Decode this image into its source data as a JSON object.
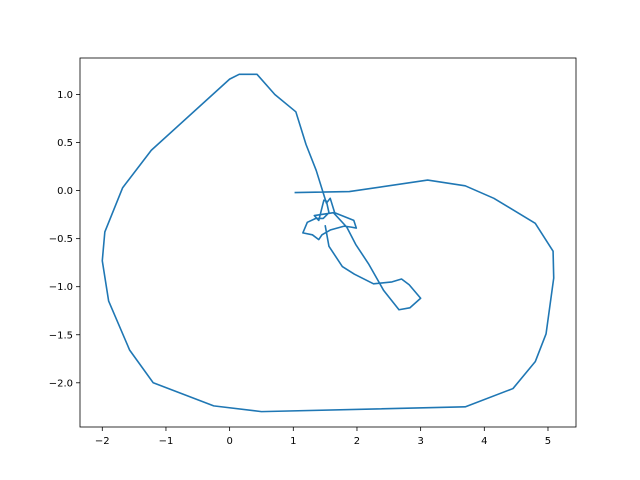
{
  "chart_data": {
    "type": "line",
    "title": "",
    "xlabel": "",
    "ylabel": "",
    "xlim": [
      -2.35,
      5.44
    ],
    "ylim": [
      -2.46,
      1.38
    ],
    "grid": false,
    "legend": "none",
    "xticks": [
      -2,
      -1,
      0,
      1,
      2,
      3,
      4,
      5
    ],
    "yticks": [
      -2.0,
      -1.5,
      -1.0,
      -0.5,
      0.0,
      0.5,
      1.0
    ],
    "xtick_labels": [
      "−2",
      "−1",
      "0",
      "1",
      "2",
      "3",
      "4",
      "5"
    ],
    "ytick_labels": [
      "−2.0",
      "−1.5",
      "−1.0",
      "−0.5",
      "0.0",
      "0.5",
      "1.0"
    ],
    "series": [
      {
        "color": "#1f77b4",
        "x": [
          1.02,
          1.88,
          3.11,
          3.7,
          4.15,
          4.8,
          5.08,
          5.09,
          4.97,
          4.8,
          4.45,
          3.7,
          0.5,
          -0.25,
          -1.2,
          -1.57,
          -1.9,
          -2.0,
          -1.96,
          -1.68,
          -1.23,
          0.0,
          0.15,
          0.43,
          0.71,
          1.04,
          1.2,
          1.36,
          1.52,
          1.58,
          1.65,
          1.95,
          1.99,
          1.91,
          1.8,
          1.58,
          1.45,
          1.4,
          1.3,
          1.15,
          1.22,
          1.35,
          1.47,
          1.56,
          1.52,
          1.48,
          1.4,
          1.33,
          1.63,
          1.84,
          1.98,
          2.18,
          2.42,
          2.66,
          2.83,
          3.0,
          2.82,
          2.7,
          2.55,
          2.26,
          1.96,
          1.77,
          1.56,
          1.5
        ],
        "y": [
          -0.02,
          -0.01,
          0.11,
          0.05,
          -0.08,
          -0.34,
          -0.63,
          -0.91,
          -1.49,
          -1.78,
          -2.06,
          -2.25,
          -2.3,
          -2.24,
          -2.0,
          -1.66,
          -1.15,
          -0.73,
          -0.43,
          0.03,
          0.42,
          1.16,
          1.21,
          1.21,
          1.0,
          0.82,
          0.48,
          0.21,
          -0.13,
          -0.08,
          -0.23,
          -0.31,
          -0.39,
          -0.38,
          -0.37,
          -0.41,
          -0.46,
          -0.51,
          -0.46,
          -0.44,
          -0.33,
          -0.29,
          -0.29,
          -0.23,
          -0.11,
          -0.1,
          -0.31,
          -0.26,
          -0.23,
          -0.38,
          -0.56,
          -0.76,
          -1.04,
          -1.24,
          -1.22,
          -1.12,
          -0.98,
          -0.92,
          -0.95,
          -0.97,
          -0.87,
          -0.79,
          -0.58,
          -0.36
        ]
      }
    ]
  }
}
